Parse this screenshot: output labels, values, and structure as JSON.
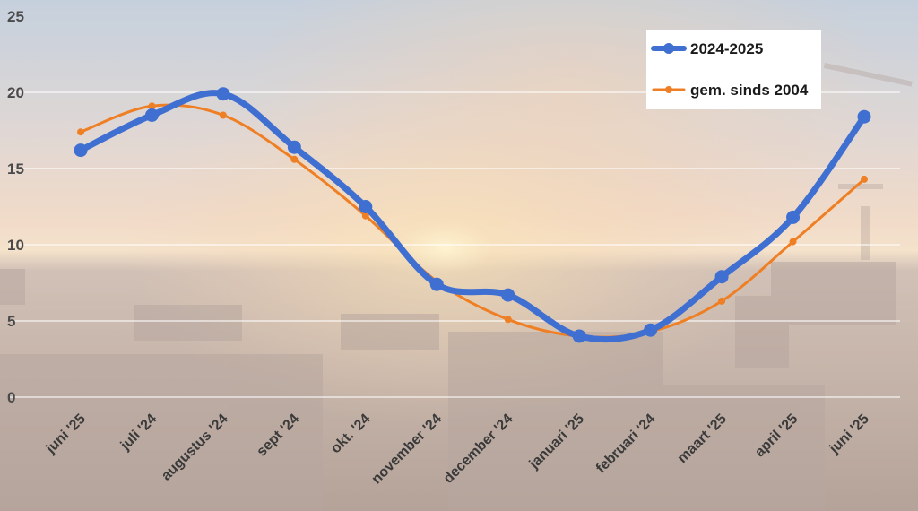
{
  "chart_data": {
    "type": "line",
    "categories": [
      "juni '25",
      "juli '24",
      "augustus '24",
      "sept '24",
      "okt. '24",
      "november '24",
      "december '24",
      "januari '25",
      "februari '24",
      "maart '25",
      "april '25",
      "juni '25"
    ],
    "series": [
      {
        "name": "2024-2025",
        "color": "#3f6fd1",
        "values": [
          16.2,
          18.5,
          19.9,
          16.4,
          12.5,
          7.4,
          6.7,
          4.0,
          4.4,
          7.9,
          11.8,
          18.4
        ]
      },
      {
        "name": "gem. sinds 2004",
        "color": "#ef7f24",
        "values": [
          17.4,
          19.1,
          18.5,
          15.6,
          11.9,
          7.6,
          5.1,
          4.0,
          4.3,
          6.3,
          10.2,
          14.3
        ]
      }
    ],
    "yticks": [
      0,
      5,
      10,
      15,
      20,
      25
    ],
    "ylim": [
      0,
      25
    ],
    "grid": true,
    "legend_position": "top-right",
    "title": "",
    "xlabel": "",
    "ylabel": ""
  },
  "colors": {
    "sky_top": "#b9c8d8",
    "sky_mid": "#e8cdb8",
    "horizon": "#f6d39a",
    "ground": "#b09a8a",
    "gridline": "#ffffff"
  }
}
